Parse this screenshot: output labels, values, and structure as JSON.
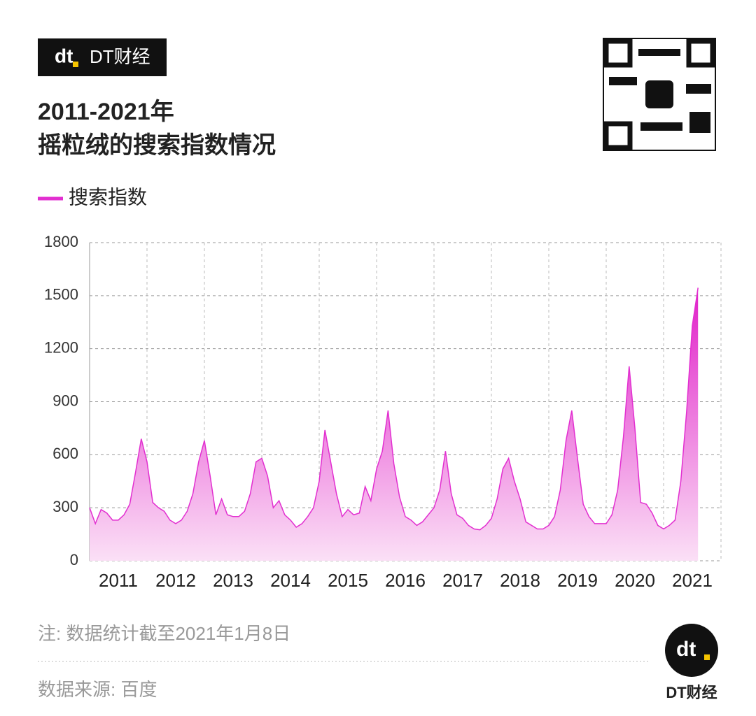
{
  "brand": "DT财经",
  "chart_data": {
    "type": "area",
    "title": "2011-2021年",
    "subtitle": "摇粒绒的搜索指数情况",
    "x": [
      2011,
      2011.1,
      2011.2,
      2011.3,
      2011.4,
      2011.5,
      2011.6,
      2011.7,
      2011.8,
      2011.9,
      2012,
      2012.1,
      2012.2,
      2012.3,
      2012.4,
      2012.5,
      2012.6,
      2012.7,
      2012.8,
      2012.9,
      2013,
      2013.1,
      2013.2,
      2013.3,
      2013.4,
      2013.5,
      2013.6,
      2013.7,
      2013.8,
      2013.9,
      2014,
      2014.1,
      2014.2,
      2014.3,
      2014.4,
      2014.5,
      2014.6,
      2014.7,
      2014.8,
      2014.9,
      2015,
      2015.1,
      2015.2,
      2015.3,
      2015.4,
      2015.5,
      2015.6,
      2015.7,
      2015.8,
      2015.9,
      2016,
      2016.1,
      2016.2,
      2016.3,
      2016.4,
      2016.5,
      2016.6,
      2016.7,
      2016.8,
      2016.9,
      2017,
      2017.1,
      2017.2,
      2017.3,
      2017.4,
      2017.5,
      2017.6,
      2017.7,
      2017.8,
      2017.9,
      2018,
      2018.1,
      2018.2,
      2018.3,
      2018.4,
      2018.5,
      2018.6,
      2018.7,
      2018.8,
      2018.9,
      2019,
      2019.1,
      2019.2,
      2019.3,
      2019.4,
      2019.5,
      2019.6,
      2019.7,
      2019.8,
      2019.9,
      2020,
      2020.1,
      2020.2,
      2020.3,
      2020.4,
      2020.5,
      2020.6,
      2020.7,
      2020.8,
      2020.9,
      2021,
      2021.1,
      2021.2,
      2021.3,
      2021.4,
      2021.5,
      2021.6
    ],
    "series": [
      {
        "name": "搜索指数",
        "color": "#e22fd0",
        "values": [
          300,
          210,
          290,
          270,
          230,
          230,
          260,
          320,
          500,
          690,
          560,
          330,
          300,
          280,
          230,
          210,
          230,
          280,
          380,
          560,
          680,
          480,
          260,
          350,
          260,
          250,
          250,
          280,
          380,
          560,
          580,
          480,
          300,
          340,
          260,
          230,
          190,
          210,
          250,
          300,
          450,
          740,
          560,
          380,
          250,
          290,
          260,
          270,
          420,
          340,
          520,
          620,
          850,
          550,
          360,
          250,
          230,
          200,
          220,
          260,
          300,
          400,
          620,
          380,
          260,
          240,
          200,
          180,
          175,
          200,
          240,
          350,
          520,
          580,
          450,
          350,
          220,
          200,
          180,
          180,
          200,
          250,
          400,
          680,
          850,
          580,
          320,
          250,
          210,
          210,
          210,
          260,
          400,
          700,
          1100,
          750,
          330,
          320,
          270,
          200,
          180,
          200,
          230,
          450,
          840,
          1330,
          1545
        ]
      }
    ],
    "xlim": [
      2011,
      2022
    ],
    "xticks": [
      {
        "value": 2011.5,
        "label": "2011"
      },
      {
        "value": 2012.5,
        "label": "2012"
      },
      {
        "value": 2013.5,
        "label": "2013"
      },
      {
        "value": 2014.5,
        "label": "2014"
      },
      {
        "value": 2015.5,
        "label": "2015"
      },
      {
        "value": 2016.5,
        "label": "2016"
      },
      {
        "value": 2017.5,
        "label": "2017"
      },
      {
        "value": 2018.5,
        "label": "2018"
      },
      {
        "value": 2019.5,
        "label": "2019"
      },
      {
        "value": 2020.5,
        "label": "2020"
      },
      {
        "value": 2021.5,
        "label": "2021"
      }
    ],
    "ylim": [
      0,
      1800
    ],
    "yticks": [
      0,
      300,
      600,
      900,
      1200,
      1500,
      1800
    ],
    "grid": true,
    "legend": "top-left",
    "note": "注: 数据统计截至2021年1月8日",
    "source": "数据来源: 百度"
  }
}
